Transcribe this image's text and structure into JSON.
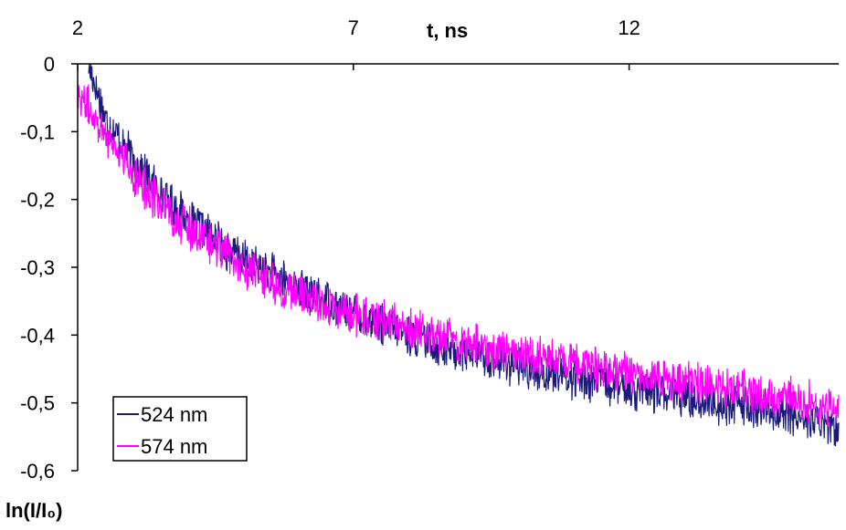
{
  "chart_data": {
    "type": "line",
    "title": "",
    "xlabel": "t, ns",
    "ylabel": "ln(I/I₀)",
    "xlim": [
      2,
      15.8
    ],
    "ylim": [
      -0.6,
      0
    ],
    "xticks": [
      2,
      7,
      12
    ],
    "xtick_labels": [
      "2",
      "7",
      "12"
    ],
    "yticks": [
      0,
      -0.1,
      -0.2,
      -0.3,
      -0.4,
      -0.5,
      -0.6
    ],
    "ytick_labels": [
      "0",
      "-0,1",
      "-0,2",
      "-0,3",
      "-0,4",
      "-0,5",
      "-0,6"
    ],
    "x_axis_position": "top",
    "grid": false,
    "legend_position": "bottom-left",
    "series": [
      {
        "name": "524 nm",
        "color": "#1a1a7a",
        "x": [
          2.2,
          2.5,
          3.0,
          3.5,
          4.0,
          4.5,
          5.0,
          5.5,
          6.0,
          6.5,
          7.0,
          7.5,
          8.0,
          8.5,
          9.0,
          9.5,
          10.0,
          10.5,
          11.0,
          11.5,
          12.0,
          12.5,
          13.0,
          13.5,
          14.0,
          14.5,
          15.0,
          15.5,
          15.8
        ],
        "y": [
          0.0,
          -0.08,
          -0.14,
          -0.19,
          -0.23,
          -0.26,
          -0.29,
          -0.31,
          -0.33,
          -0.35,
          -0.37,
          -0.385,
          -0.4,
          -0.415,
          -0.425,
          -0.435,
          -0.445,
          -0.455,
          -0.465,
          -0.47,
          -0.48,
          -0.485,
          -0.49,
          -0.5,
          -0.505,
          -0.51,
          -0.52,
          -0.53,
          -0.54
        ]
      },
      {
        "name": "574 nm",
        "color": "#ff00ff",
        "x": [
          2.0,
          2.5,
          3.0,
          3.5,
          4.0,
          4.5,
          5.0,
          5.5,
          6.0,
          6.5,
          7.0,
          7.5,
          8.0,
          8.5,
          9.0,
          9.5,
          10.0,
          10.5,
          11.0,
          11.5,
          12.0,
          12.5,
          13.0,
          13.5,
          14.0,
          14.5,
          15.0,
          15.5,
          15.8
        ],
        "y": [
          -0.04,
          -0.1,
          -0.16,
          -0.21,
          -0.24,
          -0.27,
          -0.3,
          -0.32,
          -0.34,
          -0.355,
          -0.37,
          -0.38,
          -0.39,
          -0.4,
          -0.41,
          -0.42,
          -0.425,
          -0.435,
          -0.44,
          -0.45,
          -0.455,
          -0.46,
          -0.47,
          -0.475,
          -0.48,
          -0.49,
          -0.495,
          -0.5,
          -0.51
        ]
      }
    ]
  }
}
